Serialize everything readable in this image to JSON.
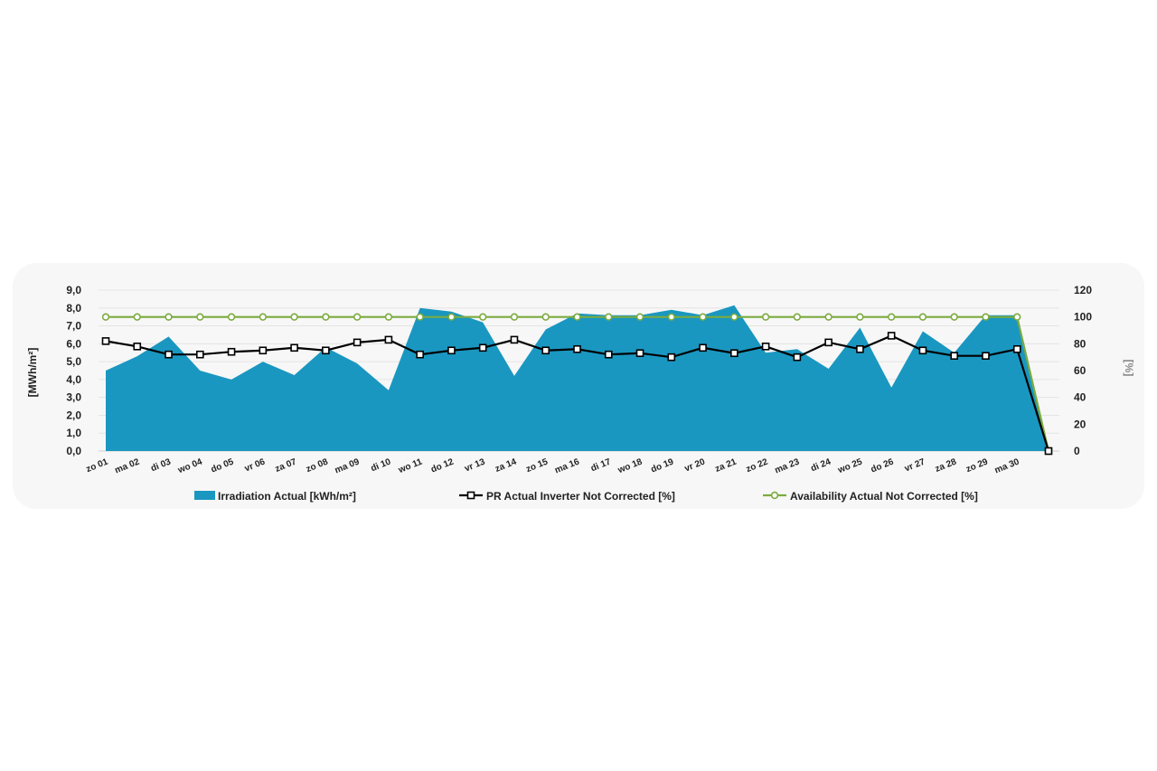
{
  "chart_data": {
    "type": "area",
    "categories": [
      "zo 01",
      "ma 02",
      "di 03",
      "wo 04",
      "do 05",
      "vr 06",
      "za 07",
      "zo 08",
      "ma 09",
      "di 10",
      "wo 11",
      "do 12",
      "vr 13",
      "za 14",
      "zo 15",
      "ma 16",
      "di 17",
      "wo 18",
      "do 19",
      "vr 20",
      "za 21",
      "zo 22",
      "ma 23",
      "di 24",
      "wo 25",
      "do 26",
      "vr 27",
      "za 28",
      "zo 29",
      "ma 30",
      ""
    ],
    "ylabel_left": "[MWh/m²]",
    "ylabel_right": "[%]",
    "ylim_left": [
      0,
      9
    ],
    "ylim_right": [
      0,
      120
    ],
    "yticks_left": [
      "0,0",
      "1,0",
      "2,0",
      "3,0",
      "4,0",
      "5,0",
      "6,0",
      "7,0",
      "8,0",
      "9,0"
    ],
    "yticks_right": [
      "0",
      "20",
      "40",
      "60",
      "80",
      "100",
      "120"
    ],
    "grid": true,
    "legend_position": "bottom",
    "series": [
      {
        "name": "Irradiation Actual [kWh/m²]",
        "kind": "area",
        "axis": "left",
        "color": "#1a97c0",
        "values": [
          4.5,
          5.3,
          6.4,
          4.5,
          4.0,
          5.0,
          4.25,
          5.8,
          4.9,
          3.4,
          8.0,
          7.8,
          7.2,
          4.2,
          6.8,
          7.7,
          7.6,
          7.6,
          7.9,
          7.6,
          8.15,
          5.5,
          5.7,
          4.6,
          6.9,
          3.55,
          6.7,
          5.5,
          7.6,
          7.6,
          0.0
        ]
      },
      {
        "name": "PR Actual Inverter Not Corrected [%]",
        "kind": "line",
        "axis": "right",
        "color": "#000000",
        "marker": "square",
        "values": [
          82,
          78,
          72,
          72,
          74,
          75,
          77,
          75,
          81,
          83,
          72,
          75,
          77,
          83,
          75,
          76,
          72,
          73,
          70,
          77,
          73,
          78,
          70,
          81,
          76,
          86,
          75,
          71,
          71,
          76,
          0
        ]
      },
      {
        "name": "Availability Actual Not Corrected [%]",
        "kind": "line",
        "axis": "right",
        "color": "#7cab3f",
        "marker": "circle",
        "values": [
          100,
          100,
          100,
          100,
          100,
          100,
          100,
          100,
          100,
          100,
          100,
          100,
          100,
          100,
          100,
          100,
          100,
          100,
          100,
          100,
          100,
          100,
          100,
          100,
          100,
          100,
          100,
          100,
          100,
          100,
          0
        ]
      }
    ]
  }
}
